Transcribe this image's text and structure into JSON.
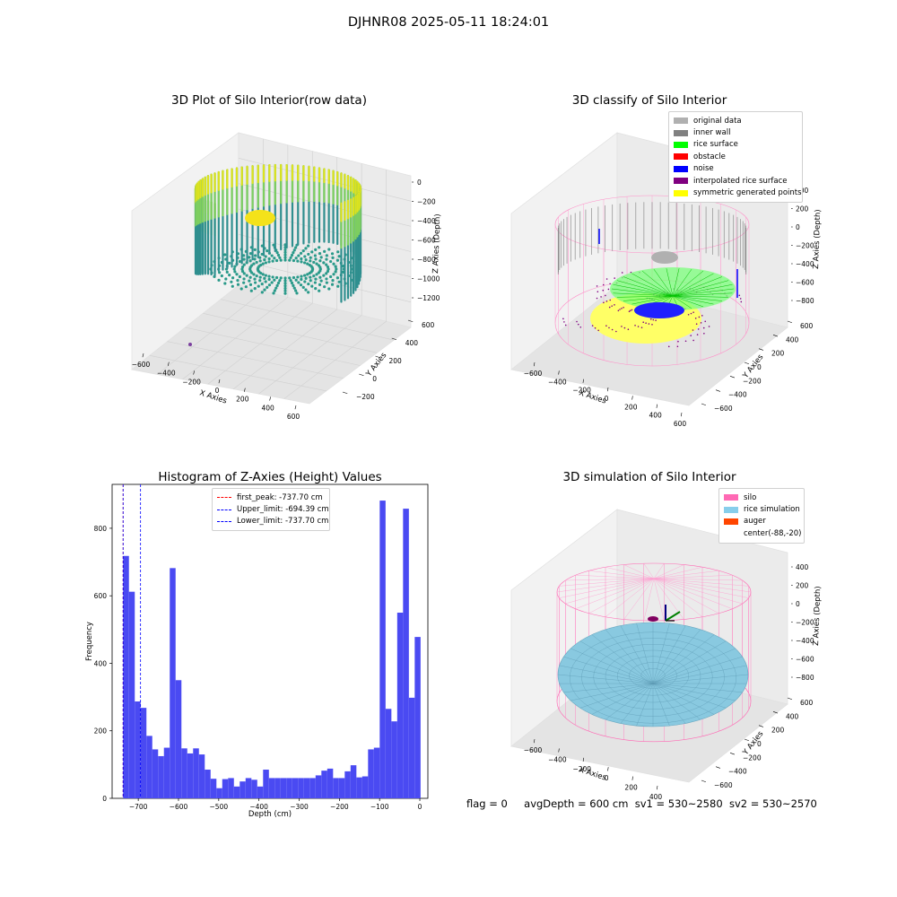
{
  "suptitle": "DJHNR08 2025-05-11 18:24:01",
  "panels": {
    "raw": {
      "title": "3D Plot of Silo Interior(row data)",
      "xlabel": "X Axies",
      "ylabel": "Y Axies",
      "zlabel": "Z Axies (Depth)",
      "xticks": [
        "−600",
        "−400",
        "−200",
        "0",
        "200",
        "400",
        "600"
      ],
      "yticks": [
        "−200",
        "0",
        "200",
        "400",
        "600"
      ],
      "zticks": [
        "0",
        "−200",
        "−400",
        "−600",
        "−800",
        "−1000",
        "−1200"
      ]
    },
    "classify": {
      "title": "3D classify of Silo Interior",
      "xlabel": "X Axies",
      "ylabel": "Y Axies",
      "zlabel": "Z Axies (Depth)",
      "xticks": [
        "−600",
        "−400",
        "−200",
        "0",
        "200",
        "400",
        "600"
      ],
      "yticks": [
        "−600",
        "−400",
        "−200",
        "0",
        "200",
        "400",
        "600"
      ],
      "zticks": [
        "400",
        "200",
        "0",
        "−200",
        "−400",
        "−600",
        "−800"
      ],
      "legend": [
        {
          "label": "original data",
          "color": "#b0b0b0"
        },
        {
          "label": "inner wall",
          "color": "#808080"
        },
        {
          "label": "rice surface",
          "color": "#00ff00"
        },
        {
          "label": "obstacle",
          "color": "#ff0000"
        },
        {
          "label": "noise",
          "color": "#0000ff"
        },
        {
          "label": "interpolated rice surface",
          "color": "#800080"
        },
        {
          "label": "symmetric generated points",
          "color": "#ffff00"
        }
      ]
    },
    "histogram": {
      "title": "Histogram of Z-Axies (Height) Values",
      "xlabel": "Depth (cm)",
      "ylabel": "Frequency",
      "legend": [
        {
          "label": "first_peak: -737.70 cm",
          "color": "#ff0000"
        },
        {
          "label": "Upper_limit: -694.39 cm",
          "color": "#0000ff"
        },
        {
          "label": "Lower_limit: -737.70 cm",
          "color": "#0000ff"
        }
      ]
    },
    "simulation": {
      "title": "3D simulation of Silo Interior",
      "xlabel": "X Axies",
      "ylabel": "Y Axies",
      "zlabel": "Z Axies (Depth)",
      "xticks": [
        "−600",
        "−400",
        "−200",
        "0",
        "200",
        "400"
      ],
      "yticks": [
        "−600",
        "−400",
        "−200",
        "0",
        "200",
        "400",
        "600"
      ],
      "zticks": [
        "400",
        "200",
        "0",
        "−200",
        "−400",
        "−600",
        "−800"
      ],
      "legend": [
        {
          "label": "silo",
          "color": "#ff69b4"
        },
        {
          "label": "rice simulation",
          "color": "#87ceeb"
        },
        {
          "label": "auger",
          "color": "#ff4500"
        },
        {
          "label": "center(-88,-20)",
          "color": "#ffffff"
        }
      ]
    }
  },
  "footer": {
    "flag": "flag = 0",
    "avg": "avgDepth = 600 cm",
    "sv1": "sv1 = 530~2580",
    "sv2": "sv2 = 530~2570"
  },
  "chart_data": {
    "type": "bar",
    "title": "Histogram of Z-Axies (Height) Values",
    "xlabel": "Depth (cm)",
    "ylabel": "Frequency",
    "xlim": [
      -765,
      20
    ],
    "ylim": [
      0,
      930
    ],
    "xticks": [
      -700,
      -600,
      -500,
      -400,
      -300,
      -200,
      -100,
      0
    ],
    "yticks": [
      0,
      200,
      400,
      600,
      800
    ],
    "bin_width": 14.5,
    "bin_start": -737.7,
    "values": [
      718,
      612,
      287,
      268,
      185,
      145,
      125,
      150,
      682,
      350,
      148,
      133,
      148,
      130,
      85,
      58,
      30,
      57,
      60,
      35,
      50,
      60,
      55,
      35,
      85,
      60,
      60,
      60,
      60,
      60,
      60,
      60,
      60,
      68,
      82,
      88,
      60,
      60,
      80,
      98,
      62,
      65,
      145,
      150,
      882,
      265,
      228,
      550,
      858,
      298,
      478
    ],
    "vlines": [
      {
        "name": "first_peak: -737.70 cm",
        "x": -737.7,
        "color": "#ff0000"
      },
      {
        "name": "Upper_limit: -694.39 cm",
        "x": -694.39,
        "color": "#0000ff"
      },
      {
        "name": "Lower_limit: -737.70 cm",
        "x": -737.7,
        "color": "#0000ff"
      }
    ]
  }
}
